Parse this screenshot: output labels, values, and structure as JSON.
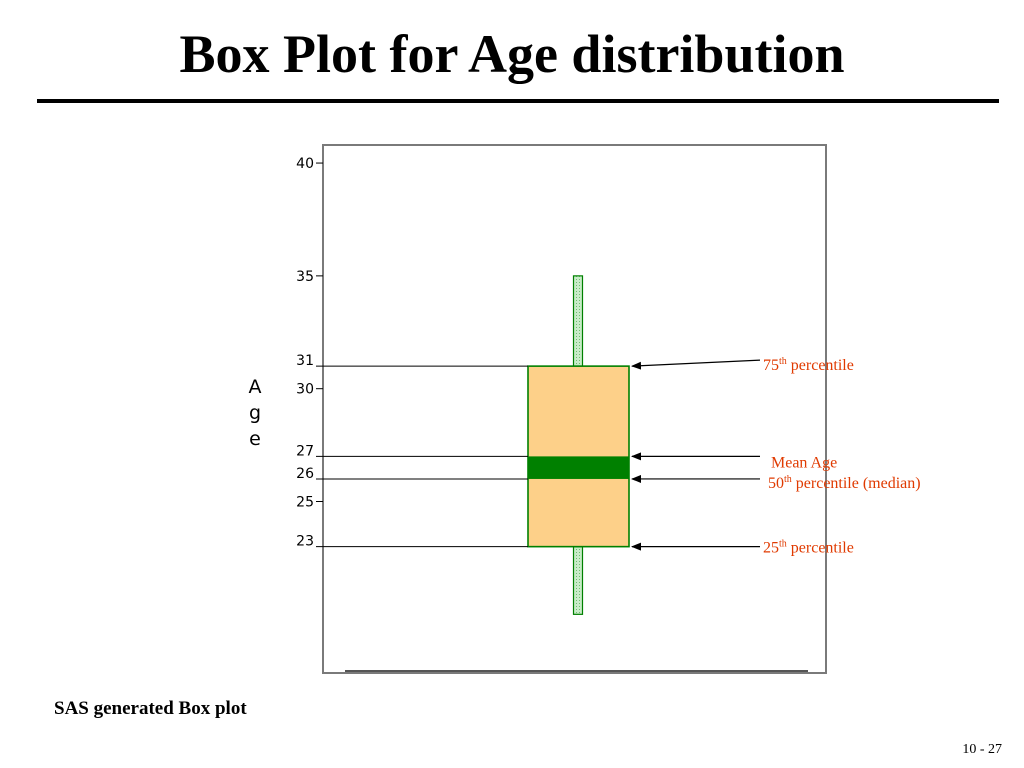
{
  "slide": {
    "caption": "SAS generated Box plot",
    "page_number": "10 - 27"
  },
  "chart_data": {
    "type": "box",
    "title": "Box Plot for Age distribution",
    "ylabel": "Age",
    "yticks": [
      40,
      35,
      30,
      25
    ],
    "ylim": [
      17.4,
      40.8
    ],
    "min": 20,
    "q1": 23,
    "median": 26,
    "mean": 27,
    "q3": 31,
    "max": 35,
    "value_labels": [
      31,
      27,
      26,
      23
    ],
    "annotations": [
      {
        "target": "q3",
        "value": 31,
        "number": "75",
        "sup": "th",
        "text": " percentile"
      },
      {
        "target": "mean",
        "value": 27,
        "number": "",
        "sup": "",
        "text": "Mean Age"
      },
      {
        "target": "median",
        "value": 26,
        "number": "50",
        "sup": "th",
        "text": " percentile (median)"
      },
      {
        "target": "q1",
        "value": 23,
        "number": "25",
        "sup": "th",
        "text": "  percentile"
      }
    ],
    "colors": {
      "box_fill": "#fdd089",
      "box_stroke": "#008000",
      "mean_band": "#008000",
      "whisker_fill": "#c8ecc8",
      "annotation": "#e03a00"
    },
    "grid": false,
    "legend": "none"
  }
}
